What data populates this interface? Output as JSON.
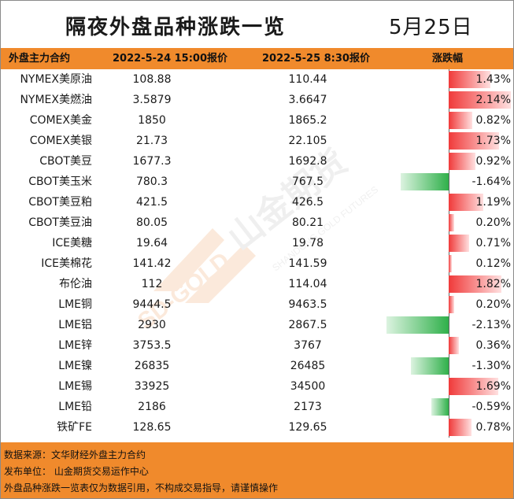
{
  "title": "隔夜外盘品种涨跌一览",
  "date": "5月25日",
  "headers": {
    "name": "外盘主力合约",
    "price1": "2022-5-24 15:00报价",
    "price2": "2022-5-25 8:30报价",
    "change": "涨跌幅"
  },
  "rows": [
    {
      "name": "NYMEX美原油",
      "p1": "108.88",
      "p2": "110.44",
      "chg": "1.43%",
      "pct": 1.43
    },
    {
      "name": "NYMEX美燃油",
      "p1": "3.5879",
      "p2": "3.6647",
      "chg": "2.14%",
      "pct": 2.14
    },
    {
      "name": "COMEX美金",
      "p1": "1850",
      "p2": "1865.2",
      "chg": "0.82%",
      "pct": 0.82
    },
    {
      "name": "COMEX美银",
      "p1": "21.73",
      "p2": "22.105",
      "chg": "1.73%",
      "pct": 1.73
    },
    {
      "name": "CBOT美豆",
      "p1": "1677.3",
      "p2": "1692.8",
      "chg": "0.92%",
      "pct": 0.92
    },
    {
      "name": "CBOT美玉米",
      "p1": "780.3",
      "p2": "767.5",
      "chg": "-1.64%",
      "pct": -1.64
    },
    {
      "name": "CBOT美豆粕",
      "p1": "421.5",
      "p2": "426.5",
      "chg": "1.19%",
      "pct": 1.19
    },
    {
      "name": "CBOT美豆油",
      "p1": "80.05",
      "p2": "80.21",
      "chg": "0.20%",
      "pct": 0.2
    },
    {
      "name": "ICE美糖",
      "p1": "19.64",
      "p2": "19.78",
      "chg": "0.71%",
      "pct": 0.71
    },
    {
      "name": "ICE美棉花",
      "p1": "141.42",
      "p2": "141.59",
      "chg": "0.12%",
      "pct": 0.12
    },
    {
      "name": "布伦油",
      "p1": "112",
      "p2": "114.04",
      "chg": "1.82%",
      "pct": 1.82
    },
    {
      "name": "LME铜",
      "p1": "9444.5",
      "p2": "9463.5",
      "chg": "0.20%",
      "pct": 0.2
    },
    {
      "name": "LME铝",
      "p1": "2930",
      "p2": "2867.5",
      "chg": "-2.13%",
      "pct": -2.13
    },
    {
      "name": "LME锌",
      "p1": "3753.5",
      "p2": "3767",
      "chg": "0.36%",
      "pct": 0.36
    },
    {
      "name": "LME镍",
      "p1": "26835",
      "p2": "26485",
      "chg": "-1.30%",
      "pct": -1.3
    },
    {
      "name": "LME锡",
      "p1": "33925",
      "p2": "34500",
      "chg": "1.69%",
      "pct": 1.69
    },
    {
      "name": "LME铅",
      "p1": "2186",
      "p2": "2173",
      "chg": "-0.59%",
      "pct": -0.59
    },
    {
      "name": "铁矿FE",
      "p1": "128.65",
      "p2": "129.65",
      "chg": "0.78%",
      "pct": 0.78
    }
  ],
  "colors": {
    "header": "#f08a2c",
    "up": "#f03a3a",
    "down": "#2fb04a"
  },
  "watermark": {
    "brand": "山金期货",
    "en": "SHANDONG GOLD FUTURES",
    "short": "SD-GOLD"
  },
  "footer": {
    "line1": "数据来源：文华财经外盘主力合约",
    "line2": "发布单位：  山金期货交易运作中心",
    "line3": "外盘品种涨跌一览表仅为数据引用，不构成交易指导，请谨慎操作"
  }
}
